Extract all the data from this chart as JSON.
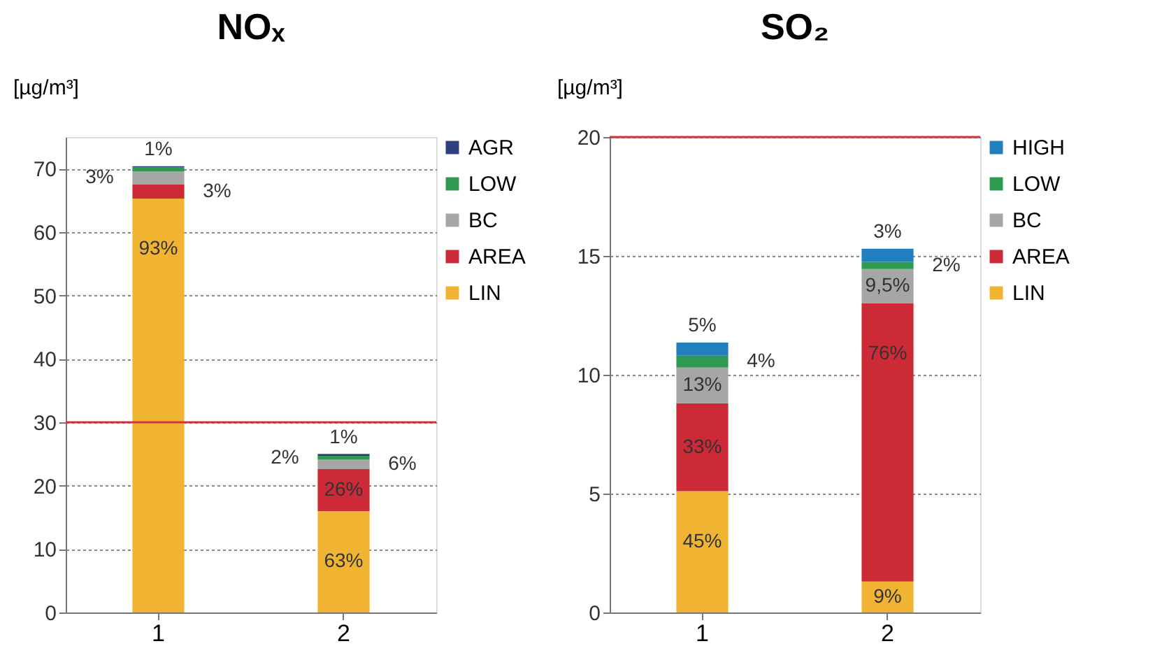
{
  "chart_data": [
    {
      "type": "bar",
      "title": "NOₓ",
      "ylabel": "[µg/m³]",
      "categories": [
        "1",
        "2"
      ],
      "stacked": true,
      "ylim": [
        0,
        75
      ],
      "yticks": [
        0,
        10,
        20,
        30,
        40,
        50,
        60,
        70
      ],
      "grid": "y",
      "legend": "right",
      "ref_lines": [
        {
          "axis": "y",
          "value": 30,
          "color": "#d0343c"
        }
      ],
      "series": [
        {
          "name": "LIN",
          "color": "#f0b432",
          "values": [
            65.3,
            16.0
          ]
        },
        {
          "name": "AREA",
          "color": "#cc2a36",
          "values": [
            2.2,
            6.6
          ]
        },
        {
          "name": "BC",
          "color": "#a6a6a6",
          "values": [
            2.1,
            1.5
          ]
        },
        {
          "name": "LOW",
          "color": "#2e9a4f",
          "values": [
            0.6,
            0.6
          ]
        },
        {
          "name": "AGR",
          "color": "#2e3f7f",
          "values": [
            0.2,
            0.3
          ]
        }
      ],
      "annotations": [
        {
          "text": "93%",
          "x": "1",
          "y": 65.3
        },
        {
          "text": "3%",
          "x": "1",
          "y": 67.5
        },
        {
          "text": "3%",
          "x": "1",
          "y": 69.6
        },
        {
          "text": "1%",
          "x": "1",
          "y": 70.4
        },
        {
          "text": "63%",
          "x": "2",
          "y": 16.0
        },
        {
          "text": "26%",
          "x": "2",
          "y": 22.6
        },
        {
          "text": "6%",
          "x": "2",
          "y": 24.1
        },
        {
          "text": "2%",
          "x": "2",
          "y": 24.7
        },
        {
          "text": "1%",
          "x": "2",
          "y": 25.0
        }
      ]
    },
    {
      "type": "bar",
      "title": "SO₂",
      "ylabel": "[µg/m³]",
      "categories": [
        "1",
        "2"
      ],
      "stacked": true,
      "ylim": [
        0,
        20
      ],
      "yticks": [
        0,
        5,
        10,
        15,
        20
      ],
      "grid": "y",
      "legend": "right",
      "ref_lines": [
        {
          "axis": "y",
          "value": 20,
          "color": "#d0343c"
        }
      ],
      "series": [
        {
          "name": "LIN",
          "color": "#f0b432",
          "values": [
            5.1,
            1.3
          ]
        },
        {
          "name": "AREA",
          "color": "#cc2a36",
          "values": [
            3.7,
            11.7
          ]
        },
        {
          "name": "BC",
          "color": "#a6a6a6",
          "values": [
            1.5,
            1.45
          ]
        },
        {
          "name": "LOW",
          "color": "#2e9a4f",
          "values": [
            0.5,
            0.3
          ]
        },
        {
          "name": "HIGH",
          "color": "#1f7fbf",
          "values": [
            0.55,
            0.55
          ]
        }
      ],
      "annotations": [
        {
          "text": "45%",
          "x": "1",
          "y": 5.1
        },
        {
          "text": "33%",
          "x": "1",
          "y": 8.8
        },
        {
          "text": "13%",
          "x": "1",
          "y": 10.3
        },
        {
          "text": "4%",
          "x": "1",
          "y": 10.8
        },
        {
          "text": "5%",
          "x": "1",
          "y": 11.35
        },
        {
          "text": "9%",
          "x": "2",
          "y": 1.3
        },
        {
          "text": "76%",
          "x": "2",
          "y": 13.0
        },
        {
          "text": "9,5%",
          "x": "2",
          "y": 14.45
        },
        {
          "text": "2%",
          "x": "2",
          "y": 14.75
        },
        {
          "text": "3%",
          "x": "2",
          "y": 15.3
        }
      ]
    }
  ]
}
